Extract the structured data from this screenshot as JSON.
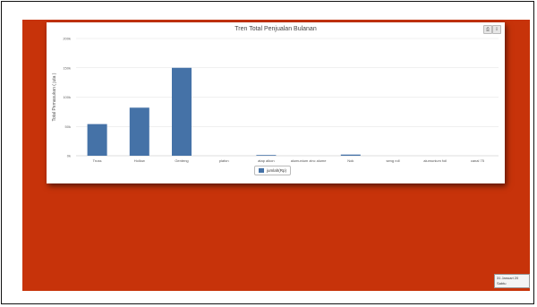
{
  "chart": {
    "title": "Tren Total Penjualan Bulanan",
    "export_icons": [
      "print-icon",
      "download-icon"
    ]
  },
  "chart_data": {
    "type": "bar",
    "title": "Tren Total Penjualan Bulanan",
    "ylabel": "Total Pemasukan ( juta )",
    "xlabel": "",
    "ylim": [
      0,
      200000
    ],
    "yticks": [
      "0k",
      "50k",
      "100k",
      "150k",
      "200k"
    ],
    "categories": [
      "Truss",
      "Hollow",
      "Genteng",
      "plafon",
      "atap alkon",
      "alumunium zinc alume",
      "Nok",
      "seng roll",
      "alumunium foil",
      "canal 75"
    ],
    "series": [
      {
        "name": "jumlah(Rp)",
        "color": "#4572a7",
        "values": [
          54000,
          82000,
          150000,
          0,
          1000,
          0,
          2000,
          0,
          0,
          0
        ]
      }
    ],
    "grid": true,
    "legend": "bottom-center"
  },
  "legend": {
    "label": "jumlah(Rp)"
  },
  "date_box": {
    "line1": "31 Januari 20",
    "line2": "Sabtu"
  }
}
